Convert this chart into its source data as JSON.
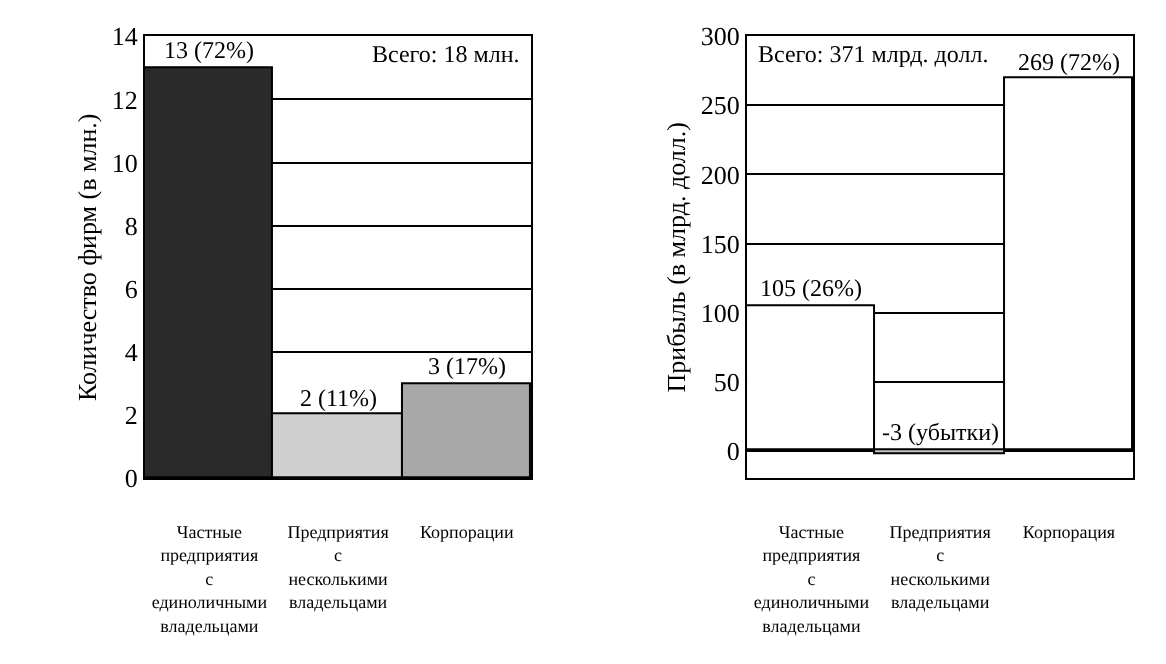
{
  "chart_data": [
    {
      "type": "bar",
      "categories": [
        "Частные предприятия с единоличными владельцами",
        "Предприятия с несколькими владельцами",
        "Корпорации"
      ],
      "values": [
        13,
        2,
        3
      ],
      "colors": [
        "#2a2a2a",
        "#cfcfcf",
        "#a8a8a8"
      ],
      "ylabel": "Количество фирм (в млн.)",
      "ylim": [
        0,
        14
      ],
      "yticks": [
        0,
        2,
        4,
        6,
        8,
        10,
        12,
        14
      ],
      "grid": "y",
      "value_labels": [
        "13 (72%)",
        "2 (11%)",
        "3 (17%)"
      ],
      "annotations": [
        "Всего: 18 млн."
      ]
    },
    {
      "type": "bar",
      "categories": [
        "Частные предприятия с единоличными владельцами",
        "Предприятия с несколькими владельцами",
        "Корпорация"
      ],
      "values": [
        105,
        -3,
        269
      ],
      "colors": [
        "#ffffff",
        "#c4c4c4",
        "#ffffff"
      ],
      "ylabel": "Прибыль (в млрд. долл.)",
      "ylim": [
        -20,
        300
      ],
      "yticks": [
        0,
        50,
        100,
        150,
        200,
        250,
        300
      ],
      "grid": "y",
      "value_labels": [
        "105 (26%)",
        "-3 (убытки)",
        "269 (72%)"
      ],
      "annotations": [
        "Всего: 371 млрд. долл."
      ]
    }
  ]
}
